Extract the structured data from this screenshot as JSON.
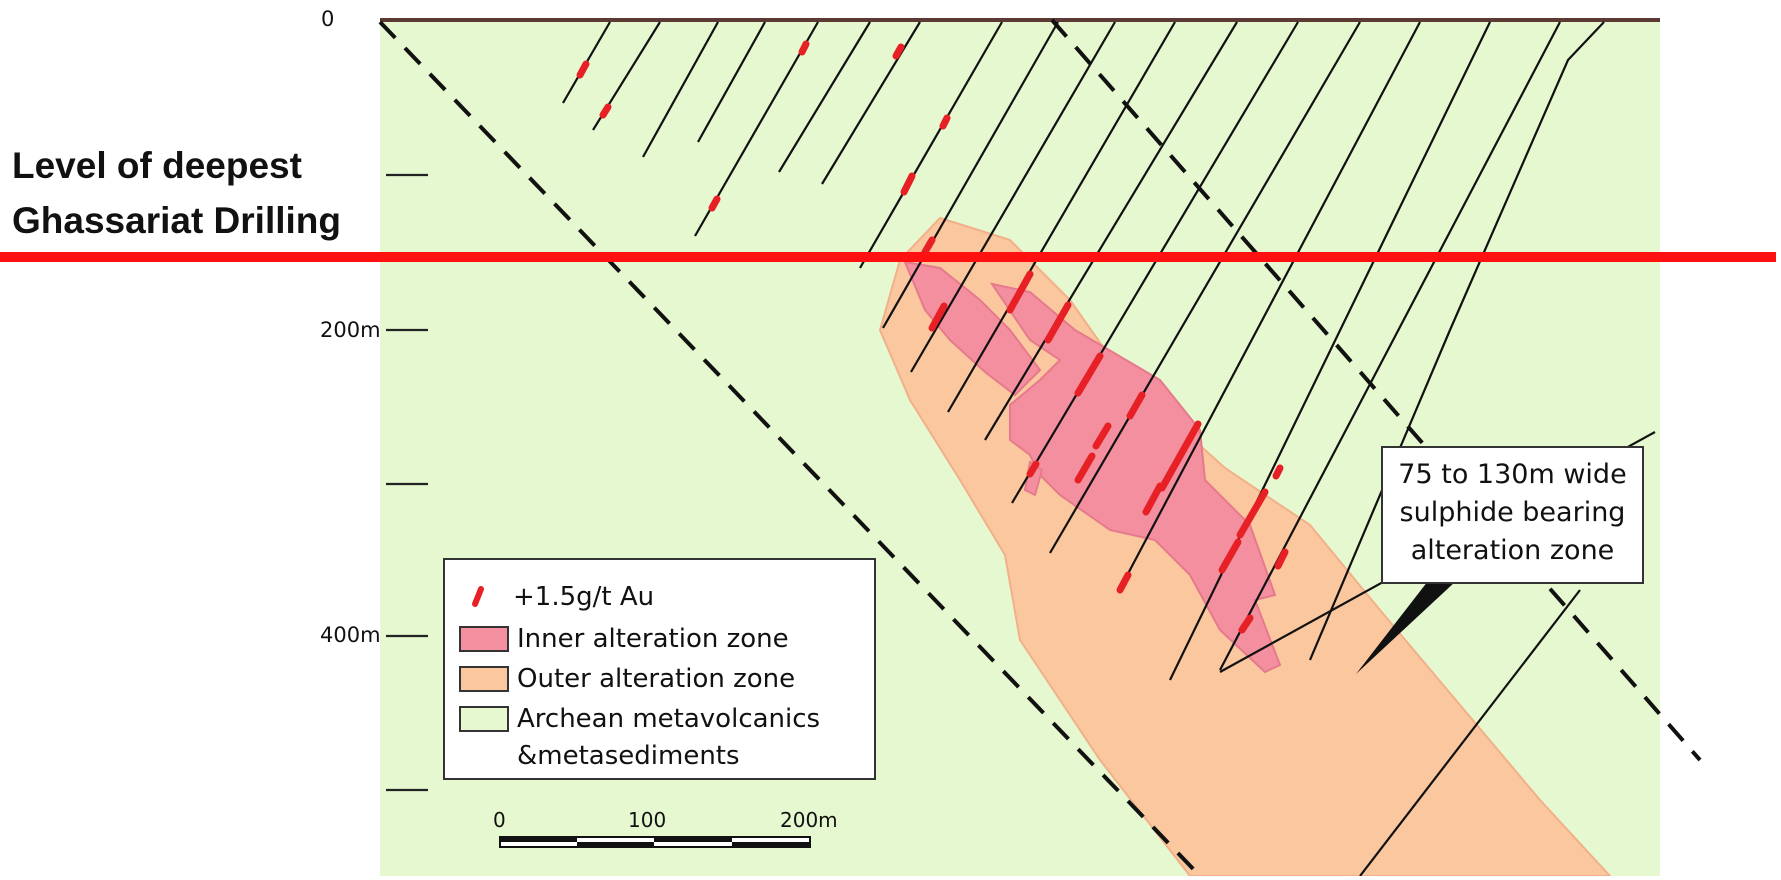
{
  "section": {
    "depth_labels": [
      "0",
      "200m",
      "400m"
    ],
    "side_note": {
      "line1": "Level of deepest",
      "line2": "Ghassariat Drilling"
    },
    "legend": {
      "gold": "+1.5g/t Au",
      "inner": "Inner alteration zone",
      "outer": "Outer alteration zone",
      "host_line1": "Archean metavolcanics",
      "host_line2": "&metasediments"
    },
    "callout": {
      "line1": "75 to 130m wide",
      "line2": "sulphide bearing",
      "line3": "alteration zone"
    },
    "scale_bar": {
      "ticks": [
        "0",
        "100",
        "200m"
      ]
    },
    "colors": {
      "host_rock": "#e6f8cf",
      "outer_zone": "#fbc79f",
      "inner_zone": "#f48fa0",
      "gold_intercept": "#e62024",
      "drilling_level": "#ff1111",
      "surface": "#5a3a33"
    }
  }
}
